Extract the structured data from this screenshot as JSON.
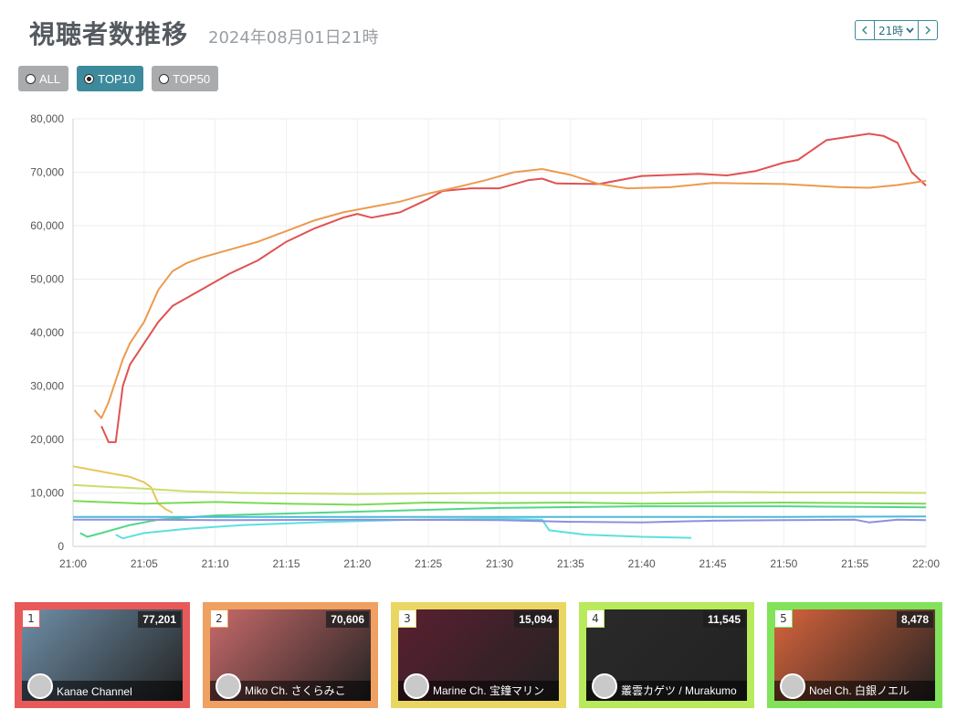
{
  "page": {
    "title": "視聴者数推移",
    "subtitle": "2024年08月01日21時",
    "hour_select": "21時",
    "nav_prev_icon": "chevron-left-icon",
    "nav_next_icon": "chevron-right-icon"
  },
  "filters": [
    {
      "label": "ALL",
      "selected": false
    },
    {
      "label": "TOP10",
      "selected": true
    },
    {
      "label": "TOP50",
      "selected": false
    }
  ],
  "chart_data": {
    "type": "line",
    "xlabel": "",
    "ylabel": "",
    "xlim": [
      "21:00",
      "22:00"
    ],
    "ylim": [
      0,
      80000
    ],
    "x_ticks": [
      "21:00",
      "21:05",
      "21:10",
      "21:15",
      "21:20",
      "21:25",
      "21:30",
      "21:35",
      "21:40",
      "21:45",
      "21:50",
      "21:55",
      "22:00"
    ],
    "y_ticks": [
      "0",
      "10,000",
      "20,000",
      "30,000",
      "40,000",
      "50,000",
      "60,000",
      "70,000",
      "80,000"
    ],
    "grid": true,
    "series": [
      {
        "color": "#e05252",
        "points": [
          [
            2,
            22500
          ],
          [
            2.5,
            19500
          ],
          [
            3,
            19500
          ],
          [
            3.5,
            30000
          ],
          [
            4,
            34000
          ],
          [
            5,
            38000
          ],
          [
            6,
            42000
          ],
          [
            7,
            45000
          ],
          [
            9,
            48000
          ],
          [
            11,
            51000
          ],
          [
            13,
            53500
          ],
          [
            15,
            57000
          ],
          [
            17,
            59500
          ],
          [
            19,
            61500
          ],
          [
            20,
            62200
          ],
          [
            21,
            61500
          ],
          [
            23,
            62500
          ],
          [
            25,
            65000
          ],
          [
            26,
            66500
          ],
          [
            28,
            67000
          ],
          [
            30,
            67000
          ],
          [
            32,
            68500
          ],
          [
            33,
            68800
          ],
          [
            34,
            67900
          ],
          [
            37,
            67800
          ],
          [
            40,
            69300
          ],
          [
            44,
            69700
          ],
          [
            46,
            69400
          ],
          [
            48,
            70200
          ],
          [
            50,
            71800
          ],
          [
            51,
            72300
          ],
          [
            53,
            76000
          ],
          [
            56,
            77200
          ],
          [
            57,
            76800
          ],
          [
            58,
            75500
          ],
          [
            59,
            70000
          ],
          [
            60,
            67500
          ]
        ]
      },
      {
        "color": "#ed9a4f",
        "points": [
          [
            1.5,
            25500
          ],
          [
            2,
            24000
          ],
          [
            2.5,
            27000
          ],
          [
            3,
            31000
          ],
          [
            3.5,
            35000
          ],
          [
            4,
            38000
          ],
          [
            5,
            42000
          ],
          [
            6,
            48000
          ],
          [
            7,
            51500
          ],
          [
            8,
            53000
          ],
          [
            9,
            54000
          ],
          [
            11,
            55500
          ],
          [
            13,
            57000
          ],
          [
            15,
            59000
          ],
          [
            17,
            61000
          ],
          [
            19,
            62500
          ],
          [
            21,
            63500
          ],
          [
            23,
            64500
          ],
          [
            25,
            66000
          ],
          [
            27,
            67200
          ],
          [
            29,
            68500
          ],
          [
            31,
            70000
          ],
          [
            33,
            70600
          ],
          [
            35,
            69500
          ],
          [
            37,
            67800
          ],
          [
            39,
            67000
          ],
          [
            42,
            67200
          ],
          [
            45,
            68000
          ],
          [
            50,
            67800
          ],
          [
            54,
            67200
          ],
          [
            56,
            67100
          ],
          [
            58,
            67600
          ],
          [
            60,
            68400
          ]
        ]
      },
      {
        "color": "#e8c65a",
        "points": [
          [
            0,
            15000
          ],
          [
            2,
            14000
          ],
          [
            4,
            13000
          ],
          [
            5,
            12000
          ],
          [
            5.5,
            11000
          ],
          [
            6,
            8000
          ],
          [
            6.5,
            7000
          ],
          [
            7,
            6300
          ]
        ]
      },
      {
        "color": "#c6e06a",
        "points": [
          [
            0,
            11500
          ],
          [
            2,
            11200
          ],
          [
            5,
            10800
          ],
          [
            8,
            10300
          ],
          [
            12,
            10000
          ],
          [
            20,
            9800
          ],
          [
            30,
            10000
          ],
          [
            40,
            10000
          ],
          [
            45,
            10200
          ],
          [
            50,
            10100
          ],
          [
            55,
            10100
          ],
          [
            60,
            10000
          ]
        ]
      },
      {
        "color": "#7ed957",
        "points": [
          [
            0,
            8500
          ],
          [
            5,
            8000
          ],
          [
            10,
            8300
          ],
          [
            15,
            8000
          ],
          [
            20,
            7800
          ],
          [
            25,
            8200
          ],
          [
            30,
            8100
          ],
          [
            35,
            8200
          ],
          [
            40,
            8000
          ],
          [
            45,
            8100
          ],
          [
            50,
            8200
          ],
          [
            55,
            8100
          ],
          [
            60,
            8000
          ]
        ]
      },
      {
        "color": "#52d68a",
        "points": [
          [
            0.5,
            2500
          ],
          [
            1,
            1800
          ],
          [
            2,
            2500
          ],
          [
            4,
            4000
          ],
          [
            6,
            5000
          ],
          [
            10,
            5800
          ],
          [
            20,
            6500
          ],
          [
            30,
            7200
          ],
          [
            40,
            7500
          ],
          [
            50,
            7500
          ],
          [
            60,
            7300
          ]
        ]
      },
      {
        "color": "#4bbad8",
        "points": [
          [
            0,
            5500
          ],
          [
            10,
            5500
          ],
          [
            20,
            5500
          ],
          [
            30,
            5500
          ],
          [
            40,
            5500
          ],
          [
            50,
            5500
          ],
          [
            60,
            5600
          ]
        ]
      },
      {
        "color": "#5ce0e0",
        "points": [
          [
            3,
            2200
          ],
          [
            3.5,
            1500
          ],
          [
            5,
            2500
          ],
          [
            8,
            3300
          ],
          [
            12,
            4000
          ],
          [
            18,
            4600
          ],
          [
            24,
            5000
          ],
          [
            30,
            5200
          ],
          [
            33,
            5000
          ],
          [
            33.5,
            3000
          ],
          [
            36,
            2200
          ],
          [
            40,
            1800
          ],
          [
            43.5,
            1600
          ]
        ]
      },
      {
        "color": "#8f8fe0",
        "points": [
          [
            0,
            5000
          ],
          [
            5,
            5000
          ],
          [
            10,
            4900
          ],
          [
            20,
            5000
          ],
          [
            30,
            4900
          ],
          [
            35,
            4600
          ],
          [
            40,
            4500
          ],
          [
            45,
            4800
          ],
          [
            50,
            4900
          ],
          [
            55,
            5000
          ],
          [
            56,
            4500
          ],
          [
            58,
            5000
          ],
          [
            60,
            4900
          ]
        ]
      }
    ]
  },
  "cards": [
    {
      "rank": "1",
      "viewers": "77,201",
      "channel": "Kanae Channel",
      "border": "#e85a5a",
      "bg": "#6f8fa8"
    },
    {
      "rank": "2",
      "viewers": "70,606",
      "channel": "Miko Ch. さくらみこ",
      "border": "#f0a060",
      "bg": "#c86a6a"
    },
    {
      "rank": "3",
      "viewers": "15,094",
      "channel": "Marine Ch. 宝鐘マリン",
      "border": "#ead763",
      "bg": "#5a2030"
    },
    {
      "rank": "4",
      "viewers": "11,545",
      "channel": "叢雲カゲツ / Murakumo",
      "border": "#b9ea5b",
      "bg": "#2a2a2a"
    },
    {
      "rank": "5",
      "viewers": "8,478",
      "channel": "Noel Ch. 白銀ノエル",
      "border": "#82e35a",
      "bg": "#d8643c"
    }
  ]
}
